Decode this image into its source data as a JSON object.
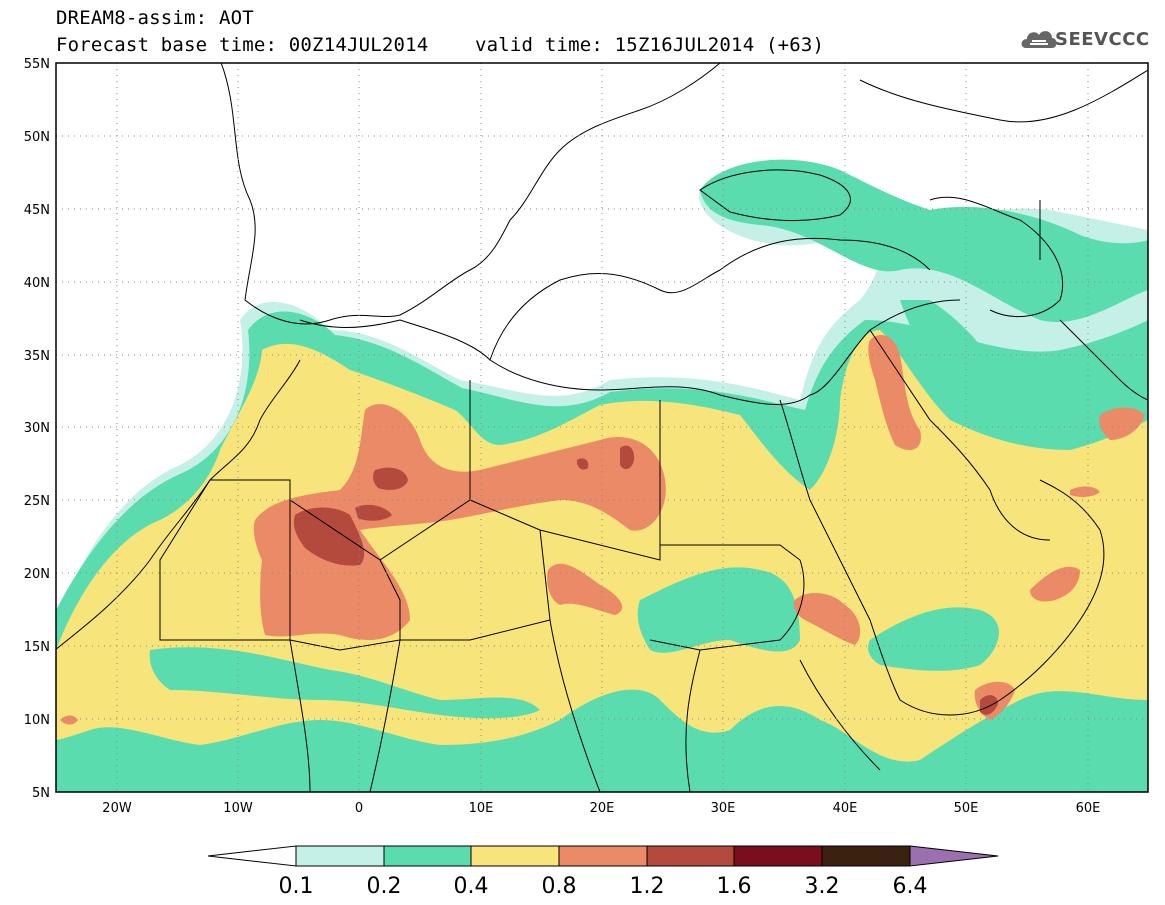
{
  "title": {
    "line1": "DREAM8-assim: AOT",
    "line2": "Forecast base time: 00Z14JUL2014    valid time: 15Z16JUL2014 (+63)"
  },
  "logo": {
    "text": "SEEVCCC",
    "icon": "cloud-icon"
  },
  "axes": {
    "lat_labels": [
      "55N",
      "50N",
      "45N",
      "40N",
      "35N",
      "30N",
      "25N",
      "20N",
      "15N",
      "10N",
      "5N"
    ],
    "lon_labels": [
      "20W",
      "10W",
      "0",
      "10E",
      "20E",
      "30E",
      "40E",
      "50E",
      "60E"
    ],
    "lon_range": [
      -25,
      65
    ],
    "lat_range": [
      5,
      55
    ]
  },
  "colorbar": {
    "labels": [
      "0.1",
      "0.2",
      "0.4",
      "0.8",
      "1.2",
      "1.6",
      "3.2",
      "6.4"
    ],
    "colors": [
      "#ffffff",
      "#c4f0e8",
      "#5bdcaf",
      "#f7e47a",
      "#eb8a66",
      "#b44a3e",
      "#7a0d1e",
      "#3a2110",
      "#9b6fb0"
    ]
  }
}
